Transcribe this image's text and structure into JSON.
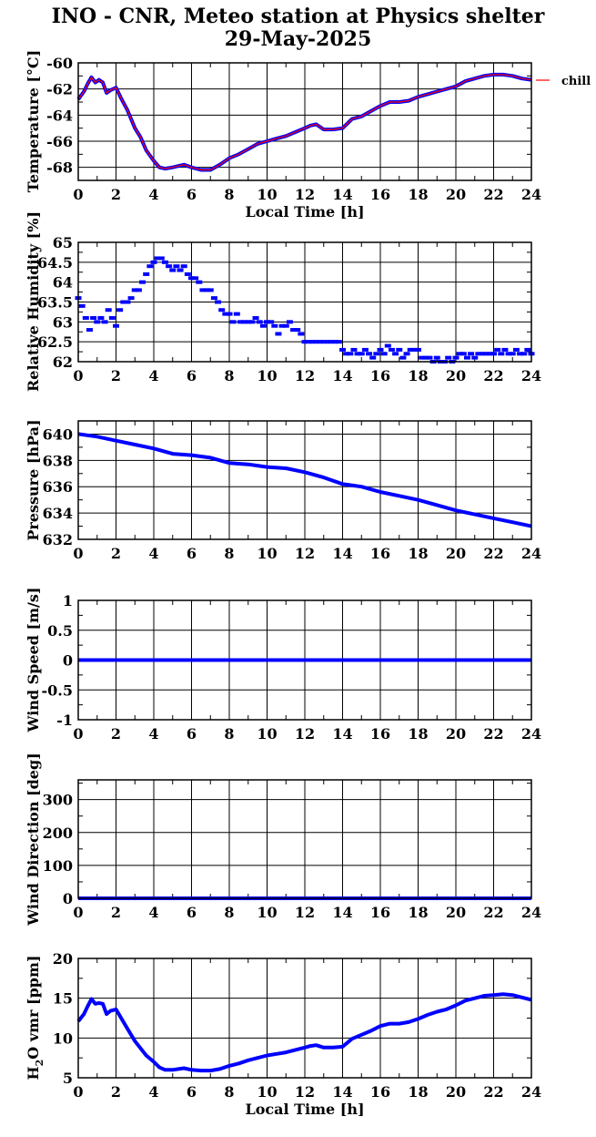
{
  "title": {
    "line1": "INO - CNR, Meteo station at Physics shelter",
    "line2": "29-May-2025"
  },
  "colors": {
    "series": "#0000ff",
    "chill": "#ff0000",
    "axis": "#000000"
  },
  "chart_data": [
    {
      "type": "line",
      "ylabel": "Temperature [°C]",
      "xlabel": "Local Time [h]",
      "xlim": [
        0,
        24
      ],
      "ylim": [
        -69,
        -60
      ],
      "yticks": [
        -68,
        -66,
        -64,
        -62,
        -60
      ],
      "ytick_labels": [
        "-68",
        "-66",
        "-64",
        "-62",
        "-60"
      ],
      "grid": true,
      "legend": {
        "position": "outside-right-top",
        "entries": [
          "chill"
        ]
      },
      "series": [
        {
          "name": "chill",
          "x": [
            0,
            0.3,
            0.5,
            0.7,
            0.9,
            1.1,
            1.3,
            1.5,
            1.7,
            2.0,
            2.3,
            2.6,
            3.0,
            3.3,
            3.6,
            4.0,
            4.3,
            4.6,
            5.0,
            5.3,
            5.6,
            6.0,
            6.5,
            7.0,
            7.5,
            8.0,
            8.5,
            9.0,
            9.5,
            10.0,
            10.5,
            11.0,
            11.5,
            12.0,
            12.3,
            12.6,
            13.0,
            13.5,
            14.0,
            14.5,
            15.0,
            15.5,
            16.0,
            16.5,
            17.0,
            17.5,
            18.0,
            18.5,
            19.0,
            19.5,
            20.0,
            20.5,
            21.0,
            21.5,
            22.0,
            22.5,
            23.0,
            23.5,
            24.0
          ],
          "y": [
            -62.8,
            -62.2,
            -61.6,
            -61.1,
            -61.5,
            -61.3,
            -61.5,
            -62.3,
            -62.1,
            -61.9,
            -62.8,
            -63.6,
            -65.0,
            -65.7,
            -66.7,
            -67.5,
            -68.0,
            -68.1,
            -68.0,
            -67.9,
            -67.8,
            -68.0,
            -68.2,
            -68.2,
            -67.8,
            -67.3,
            -67.0,
            -66.6,
            -66.2,
            -66.0,
            -65.8,
            -65.6,
            -65.3,
            -65.0,
            -64.8,
            -64.7,
            -65.1,
            -65.1,
            -65.0,
            -64.3,
            -64.1,
            -63.7,
            -63.3,
            -63.0,
            -63.0,
            -62.9,
            -62.6,
            -62.4,
            -62.2,
            -62.0,
            -61.8,
            -61.4,
            -61.2,
            -61.0,
            -60.9,
            -60.9,
            -61.0,
            -61.2,
            -61.3
          ]
        },
        {
          "name": "",
          "x": [
            0,
            0.3,
            0.5,
            0.7,
            0.9,
            1.1,
            1.3,
            1.5,
            1.7,
            2.0,
            2.3,
            2.6,
            3.0,
            3.3,
            3.6,
            4.0,
            4.3,
            4.6,
            5.0,
            5.3,
            5.6,
            6.0,
            6.5,
            7.0,
            7.5,
            8.0,
            8.5,
            9.0,
            9.5,
            10.0,
            10.5,
            11.0,
            11.5,
            12.0,
            12.3,
            12.6,
            13.0,
            13.5,
            14.0,
            14.5,
            15.0,
            15.5,
            16.0,
            16.5,
            17.0,
            17.5,
            18.0,
            18.5,
            19.0,
            19.5,
            20.0,
            20.5,
            21.0,
            21.5,
            22.0,
            22.5,
            23.0,
            23.5,
            24.0
          ],
          "y": [
            -62.8,
            -62.2,
            -61.6,
            -61.1,
            -61.5,
            -61.3,
            -61.5,
            -62.3,
            -62.1,
            -61.9,
            -62.8,
            -63.6,
            -65.0,
            -65.7,
            -66.7,
            -67.5,
            -68.0,
            -68.1,
            -68.0,
            -67.9,
            -67.8,
            -68.0,
            -68.2,
            -68.2,
            -67.8,
            -67.3,
            -67.0,
            -66.6,
            -66.2,
            -66.0,
            -65.8,
            -65.6,
            -65.3,
            -65.0,
            -64.8,
            -64.7,
            -65.1,
            -65.1,
            -65.0,
            -64.3,
            -64.1,
            -63.7,
            -63.3,
            -63.0,
            -63.0,
            -62.9,
            -62.6,
            -62.4,
            -62.2,
            -62.0,
            -61.8,
            -61.4,
            -61.2,
            -61.0,
            -60.9,
            -60.9,
            -61.0,
            -61.2,
            -61.3
          ]
        }
      ]
    },
    {
      "type": "scatter",
      "ylabel": "Relative Humidity [%]",
      "xlim": [
        0,
        24
      ],
      "ylim": [
        62,
        65
      ],
      "yticks": [
        62,
        62.5,
        63,
        63.5,
        64,
        64.5,
        65
      ],
      "ytick_labels": [
        "62",
        "62.5",
        "63",
        "63.5",
        "64",
        "64.5",
        "65"
      ],
      "grid": true,
      "series": [
        {
          "x": [
            0,
            0.2,
            0.4,
            0.6,
            0.8,
            1.0,
            1.2,
            1.4,
            1.6,
            1.8,
            2.0,
            2.2,
            2.4,
            2.6,
            2.8,
            3.0,
            3.2,
            3.4,
            3.6,
            3.8,
            4.0,
            4.2,
            4.4,
            4.6,
            4.8,
            5.0,
            5.2,
            5.4,
            5.6,
            5.8,
            6.0,
            6.2,
            6.4,
            6.6,
            6.8,
            7.0,
            7.2,
            7.4,
            7.6,
            7.8,
            8.0,
            8.2,
            8.4,
            8.6,
            8.8,
            9.0,
            9.2,
            9.4,
            9.6,
            9.8,
            10.0,
            10.2,
            10.4,
            10.6,
            10.8,
            11.0,
            11.2,
            11.4,
            11.6,
            11.8,
            12.0,
            12.2,
            12.4,
            12.6,
            12.8,
            13.0,
            13.2,
            13.4,
            13.6,
            13.8,
            14.0,
            14.2,
            14.4,
            14.6,
            14.8,
            15.0,
            15.2,
            15.4,
            15.6,
            15.8,
            16.0,
            16.2,
            16.4,
            16.6,
            16.8,
            17.0,
            17.2,
            17.4,
            17.6,
            17.8,
            18.0,
            18.2,
            18.4,
            18.6,
            18.8,
            19.0,
            19.2,
            19.4,
            19.6,
            19.8,
            20.0,
            20.2,
            20.4,
            20.6,
            20.8,
            21.0,
            21.2,
            21.4,
            21.6,
            21.8,
            22.0,
            22.2,
            22.4,
            22.6,
            22.8,
            23.0,
            23.2,
            23.4,
            23.6,
            23.8,
            24.0
          ],
          "y": [
            63.6,
            63.4,
            63.1,
            62.8,
            63.1,
            63.0,
            63.1,
            63.0,
            63.3,
            63.1,
            62.9,
            63.3,
            63.5,
            63.5,
            63.6,
            63.8,
            63.8,
            64.0,
            64.2,
            64.4,
            64.5,
            64.6,
            64.6,
            64.5,
            64.4,
            64.3,
            64.4,
            64.3,
            64.4,
            64.2,
            64.1,
            64.1,
            64.0,
            63.8,
            63.8,
            63.8,
            63.6,
            63.5,
            63.3,
            63.2,
            63.2,
            63.0,
            63.2,
            63.0,
            63.0,
            63.0,
            63.0,
            63.1,
            63.0,
            62.9,
            63.0,
            63.0,
            62.9,
            62.7,
            62.9,
            62.9,
            63.0,
            62.8,
            62.8,
            62.7,
            62.5,
            62.5,
            62.5,
            62.5,
            62.5,
            62.5,
            62.5,
            62.5,
            62.5,
            62.5,
            62.3,
            62.2,
            62.2,
            62.3,
            62.2,
            62.2,
            62.3,
            62.2,
            62.1,
            62.2,
            62.3,
            62.2,
            62.4,
            62.3,
            62.2,
            62.3,
            62.1,
            62.2,
            62.3,
            62.3,
            62.3,
            62.1,
            62.1,
            62.1,
            62.0,
            62.1,
            62.0,
            62.0,
            62.1,
            62.0,
            62.1,
            62.2,
            62.2,
            62.1,
            62.2,
            62.1,
            62.2,
            62.2,
            62.2,
            62.2,
            62.2,
            62.3,
            62.2,
            62.3,
            62.2,
            62.2,
            62.3,
            62.2,
            62.2,
            62.3,
            62.2
          ]
        }
      ]
    },
    {
      "type": "line",
      "ylabel": "Pressure [hPa]",
      "xlim": [
        0,
        24
      ],
      "ylim": [
        632,
        641
      ],
      "yticks": [
        632,
        634,
        636,
        638,
        640
      ],
      "ytick_labels": [
        "632",
        "634",
        "636",
        "638",
        "640"
      ],
      "grid": true,
      "series": [
        {
          "x": [
            0,
            1,
            2,
            3,
            4,
            5,
            6,
            7,
            8,
            9,
            10,
            11,
            12,
            13,
            14,
            15,
            16,
            17,
            18,
            19,
            20,
            21,
            22,
            23,
            24
          ],
          "y": [
            640.0,
            639.8,
            639.5,
            639.2,
            638.9,
            638.5,
            638.4,
            638.2,
            637.8,
            637.7,
            637.5,
            637.4,
            637.1,
            636.7,
            636.2,
            636.0,
            635.6,
            635.3,
            635.0,
            634.6,
            634.2,
            633.9,
            633.6,
            633.3,
            633.0
          ]
        }
      ]
    },
    {
      "type": "line",
      "ylabel": "Wind Speed [m/s]",
      "xlim": [
        0,
        24
      ],
      "ylim": [
        -1,
        1
      ],
      "yticks": [
        -1,
        -0.5,
        0,
        0.5,
        1
      ],
      "ytick_labels": [
        "-1",
        "-0.5",
        "0",
        "0.5",
        "1"
      ],
      "grid": true,
      "series": [
        {
          "x": [
            0,
            24
          ],
          "y": [
            0,
            0
          ]
        }
      ]
    },
    {
      "type": "line",
      "ylabel": "Wind Direction [deg]",
      "xlim": [
        0,
        24
      ],
      "ylim": [
        0,
        360
      ],
      "yticks": [
        0,
        100,
        200,
        300
      ],
      "ytick_labels": [
        "0",
        "100",
        "200",
        "300"
      ],
      "grid": true,
      "series": [
        {
          "x": [
            0,
            24
          ],
          "y": [
            0,
            0
          ]
        }
      ]
    },
    {
      "type": "line",
      "ylabel_main": "H",
      "ylabel_sub": "2",
      "ylabel_rest": "O vmr [ppm]",
      "xlabel": "Local Time [h]",
      "xlim": [
        0,
        24
      ],
      "ylim": [
        5,
        20
      ],
      "yticks": [
        5,
        10,
        15,
        20
      ],
      "ytick_labels": [
        "5",
        "10",
        "15",
        "20"
      ],
      "grid": true,
      "series": [
        {
          "x": [
            0,
            0.3,
            0.5,
            0.7,
            0.9,
            1.1,
            1.3,
            1.5,
            1.7,
            2.0,
            2.3,
            2.6,
            3.0,
            3.3,
            3.6,
            4.0,
            4.3,
            4.6,
            5.0,
            5.3,
            5.6,
            6.0,
            6.5,
            7.0,
            7.5,
            8.0,
            8.5,
            9.0,
            9.5,
            10.0,
            10.5,
            11.0,
            11.5,
            12.0,
            12.3,
            12.6,
            13.0,
            13.5,
            14.0,
            14.5,
            15.0,
            15.5,
            16.0,
            16.5,
            17.0,
            17.5,
            18.0,
            18.5,
            19.0,
            19.5,
            20.0,
            20.5,
            21.0,
            21.5,
            22.0,
            22.5,
            23.0,
            23.5,
            24.0
          ],
          "y": [
            12.1,
            13.0,
            14.0,
            14.9,
            14.3,
            14.4,
            14.3,
            13.0,
            13.4,
            13.6,
            12.4,
            11.2,
            9.6,
            8.7,
            7.8,
            7.0,
            6.3,
            6.0,
            6.0,
            6.1,
            6.2,
            6.0,
            5.9,
            5.9,
            6.1,
            6.5,
            6.8,
            7.2,
            7.5,
            7.8,
            8.0,
            8.2,
            8.5,
            8.8,
            9.0,
            9.1,
            8.8,
            8.8,
            8.9,
            9.9,
            10.4,
            10.9,
            11.5,
            11.8,
            11.8,
            12.0,
            12.4,
            12.9,
            13.3,
            13.6,
            14.1,
            14.7,
            15.0,
            15.3,
            15.4,
            15.5,
            15.4,
            15.1,
            14.8
          ]
        }
      ]
    }
  ],
  "xticks": [
    0,
    2,
    4,
    6,
    8,
    10,
    12,
    14,
    16,
    18,
    20,
    22,
    24
  ],
  "xtick_labels": [
    "0",
    "2",
    "4",
    "6",
    "8",
    "10",
    "12",
    "14",
    "16",
    "18",
    "20",
    "22",
    "24"
  ]
}
